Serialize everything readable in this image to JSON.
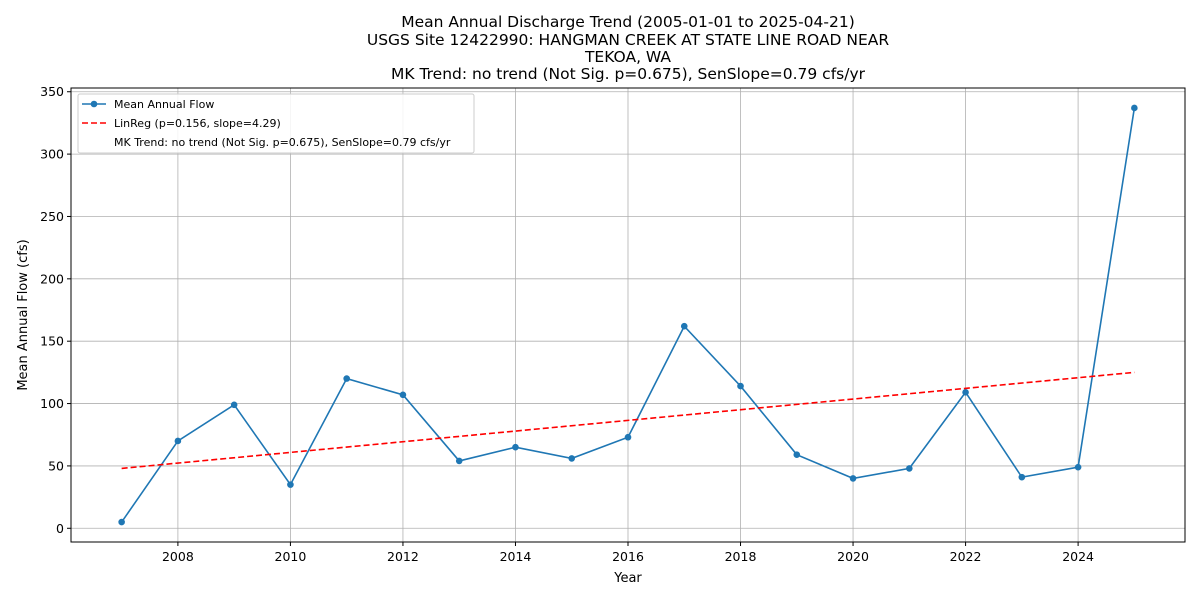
{
  "chart_data": {
    "type": "line",
    "title_lines": [
      "Mean Annual Discharge Trend (2005-01-01 to 2025-04-21)",
      "USGS Site 12422990: HANGMAN CREEK AT STATE LINE ROAD NEAR",
      "TEKOA, WA",
      "MK Trend: no trend (Not Sig. p=0.675), SenSlope=0.79 cfs/yr"
    ],
    "xlabel": "Year",
    "ylabel": "Mean Annual Flow (cfs)",
    "xlim": [
      2006.1,
      2025.9
    ],
    "ylim": [
      -11,
      353
    ],
    "x_ticks": [
      2008,
      2010,
      2012,
      2014,
      2016,
      2018,
      2020,
      2022,
      2024
    ],
    "x_tick_labels": [
      "2008",
      "2010",
      "2012",
      "2014",
      "2016",
      "2018",
      "2020",
      "2022",
      "2024"
    ],
    "y_ticks": [
      0,
      50,
      100,
      150,
      200,
      250,
      300,
      350
    ],
    "y_tick_labels": [
      "0",
      "50",
      "100",
      "150",
      "200",
      "250",
      "300",
      "350"
    ],
    "grid": true,
    "legend_position": "top-left",
    "series": [
      {
        "name": "Mean Annual Flow",
        "kind": "line-markers",
        "color": "#1f77b4",
        "x": [
          2007,
          2008,
          2009,
          2010,
          2011,
          2012,
          2013,
          2014,
          2015,
          2016,
          2017,
          2018,
          2019,
          2020,
          2021,
          2022,
          2023,
          2024,
          2025
        ],
        "y": [
          5,
          70,
          99,
          35,
          120,
          107,
          54,
          65,
          56,
          73,
          162,
          114,
          59,
          40,
          48,
          109,
          41,
          49,
          337
        ]
      },
      {
        "name": "LinReg (p=0.156, slope=4.29)",
        "kind": "dashed-line",
        "color": "#ff0000",
        "x": [
          2007,
          2025
        ],
        "y": [
          48,
          125
        ]
      }
    ],
    "legend": [
      {
        "label": "Mean Annual Flow",
        "style": "line-marker",
        "color": "#1f77b4"
      },
      {
        "label": "LinReg (p=0.156, slope=4.29)",
        "style": "dashed",
        "color": "#ff0000"
      },
      {
        "label": "MK Trend: no trend (Not Sig. p=0.675), SenSlope=0.79 cfs/yr",
        "style": "none",
        "color": "#ffffff"
      }
    ],
    "colors": {
      "grid": "#b0b0b0",
      "axes": "#000000",
      "background": "#ffffff"
    }
  }
}
